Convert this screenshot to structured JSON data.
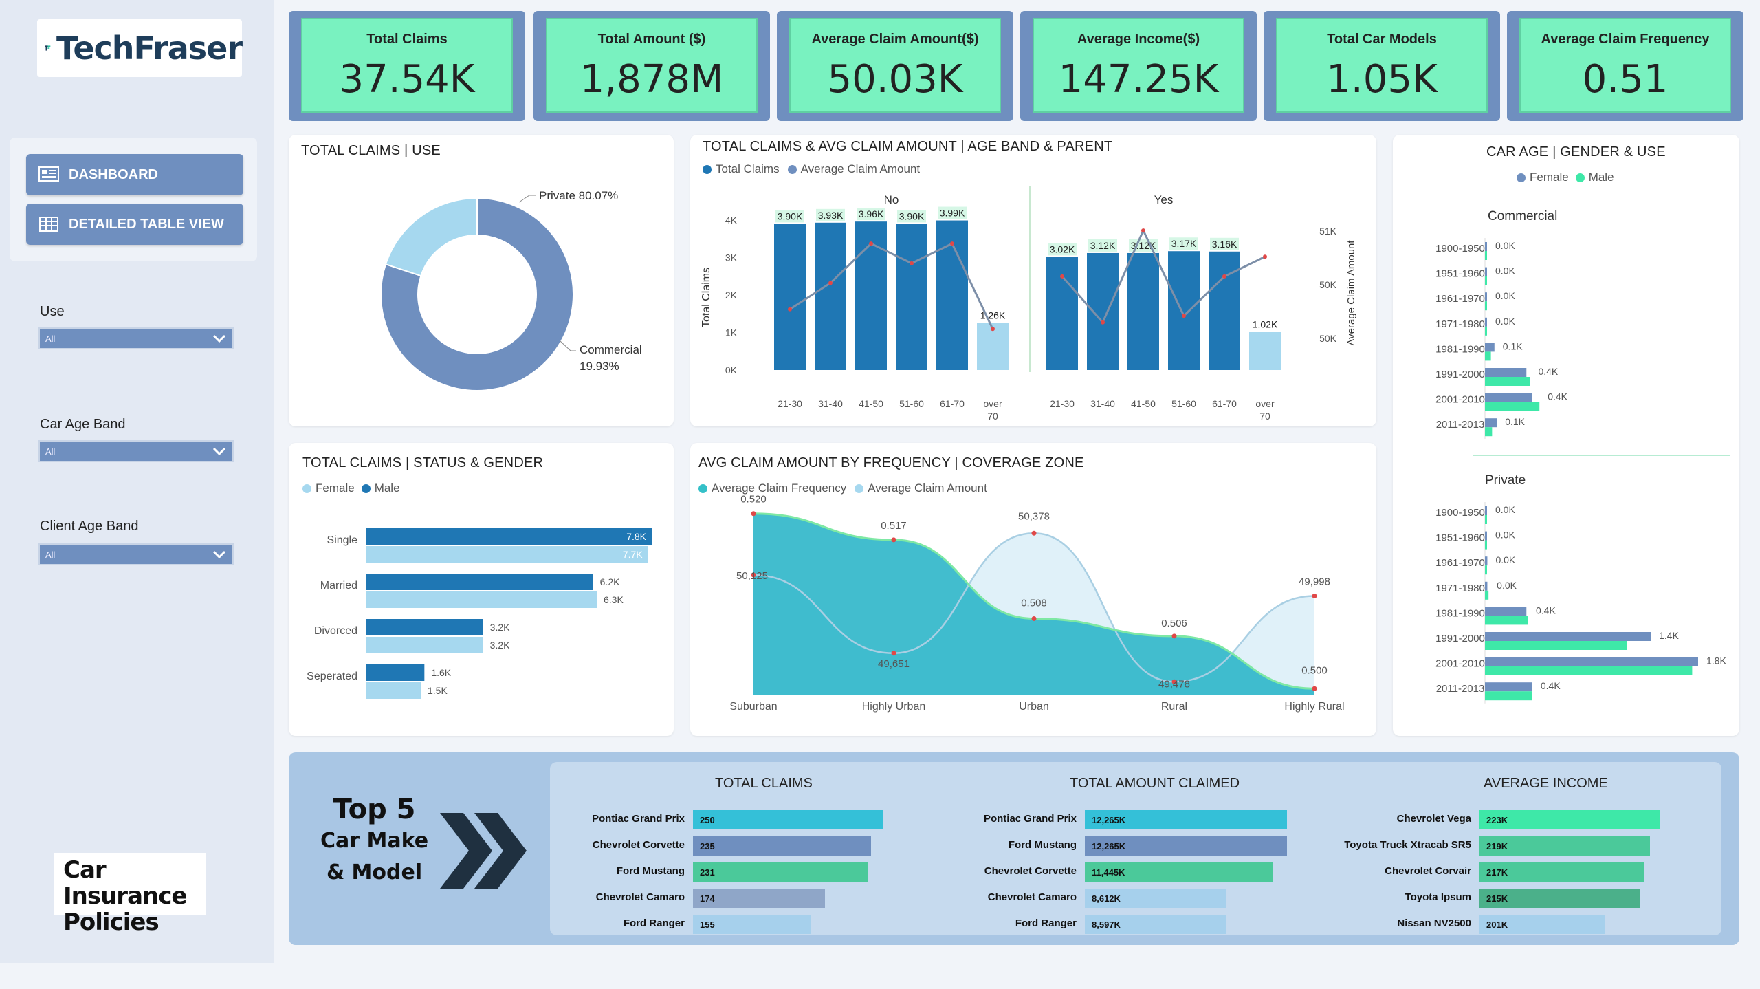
{
  "brand": {
    "name": "TechFraser",
    "report_name": "Car Insurance Policies"
  },
  "nav": {
    "dashboard": "DASHBOARD",
    "detailed": "DETAILED TABLE VIEW"
  },
  "filters": [
    {
      "label": "Use",
      "value": "All"
    },
    {
      "label": "Car Age Band",
      "value": "All"
    },
    {
      "label": "Client Age Band",
      "value": "All"
    }
  ],
  "kpis": [
    {
      "title": "Total Claims",
      "value": "37.54K"
    },
    {
      "title": "Total Amount ($)",
      "value": "1,878M"
    },
    {
      "title": "Average Claim Amount($)",
      "value": "50.03K"
    },
    {
      "title": "Average Income($)",
      "value": "147.25K"
    },
    {
      "title": "Total Car Models",
      "value": "1.05K"
    },
    {
      "title": "Average Claim Frequency",
      "value": "0.51"
    }
  ],
  "colors": {
    "dark_blue": "#1f77b4",
    "light_blue": "#a6d8ef",
    "slate": "#6f8fbf",
    "mint": "#79f2c0",
    "teal": "#34c0c8"
  },
  "chart_data": [
    {
      "type": "pie",
      "title": "TOTAL CLAIMS | USE",
      "slices": [
        {
          "name": "Private",
          "value": 80.07,
          "label": "Private 80.07%"
        },
        {
          "name": "Commercial",
          "value": 19.93,
          "label_line1": "Commercial",
          "label_line2": "19.93%"
        }
      ]
    },
    {
      "type": "bar",
      "title": "TOTAL CLAIMS & AVG CLAIM AMOUNT | AGE BAND & PARENT",
      "legend": [
        "Total Claims",
        "Average Claim Amount"
      ],
      "ylabel": "Total Claims",
      "y2label": "Average Claim Amount",
      "yticks": [
        "4K",
        "3K",
        "2K",
        "1K",
        "0K"
      ],
      "y2ticks": [
        "51K",
        "50K",
        "50K"
      ],
      "ylim": [
        0,
        4000
      ],
      "groups": [
        {
          "name": "No",
          "categories": [
            "21-30",
            "31-40",
            "41-50",
            "51-60",
            "61-70",
            "over 70"
          ],
          "values": [
            3900,
            3930,
            3960,
            3900,
            3990,
            1260
          ],
          "labels": [
            "3.90K",
            "3.93K",
            "3.96K",
            "3.90K",
            "3.99K",
            "1.26K"
          ],
          "avg_amount": [
            49800,
            50200,
            50800,
            50500,
            50800,
            49500
          ]
        },
        {
          "name": "Yes",
          "categories": [
            "21-30",
            "31-40",
            "41-50",
            "51-60",
            "61-70",
            "over 70"
          ],
          "values": [
            3020,
            3120,
            3120,
            3170,
            3160,
            1020
          ],
          "labels": [
            "3.02K",
            "3.12K",
            "3.12K",
            "3.17K",
            "3.16K",
            "1.02K"
          ],
          "avg_amount": [
            50300,
            49600,
            51000,
            49700,
            50300,
            50600
          ]
        }
      ]
    },
    {
      "type": "bar",
      "title": "CAR AGE | GENDER & USE",
      "legend": [
        "Female",
        "Male"
      ],
      "categories": [
        "1900-1950",
        "1951-1960",
        "1961-1970",
        "1971-1980",
        "1981-1990",
        "1991-2000",
        "2001-2010",
        "2011-2013"
      ],
      "panels": [
        {
          "name": "Commercial",
          "female": [
            0.0,
            0.0,
            0.0,
            0.0,
            0.08,
            0.35,
            0.4,
            0.1
          ],
          "male": [
            0.0,
            0.0,
            0.0,
            0.0,
            0.05,
            0.38,
            0.46,
            0.06
          ],
          "labels": [
            "0.0K",
            "0.0K",
            "0.0K",
            "0.0K",
            "0.1K",
            "0.4K",
            "0.4K",
            "0.1K"
          ]
        },
        {
          "name": "Private",
          "female": [
            0.0,
            0.0,
            0.02,
            0.02,
            0.35,
            1.4,
            1.8,
            0.4
          ],
          "male": [
            0.0,
            0.0,
            0.0,
            0.03,
            0.36,
            1.2,
            1.75,
            0.4
          ],
          "labels": [
            "0.0K",
            "0.0K",
            "0.0K",
            "0.0K",
            "0.4K",
            "1.4K",
            "1.8K",
            "0.4K"
          ]
        }
      ]
    },
    {
      "type": "bar",
      "title": "TOTAL CLAIMS | STATUS & GENDER",
      "legend": [
        "Female",
        "Male"
      ],
      "categories": [
        "Single",
        "Married",
        "Divorced",
        "Seperated"
      ],
      "series": [
        {
          "name": "Male",
          "values": [
            7.8,
            6.2,
            3.2,
            1.6
          ],
          "labels": [
            "7.8K",
            "6.2K",
            "3.2K",
            "1.6K"
          ]
        },
        {
          "name": "Female",
          "values": [
            7.7,
            6.3,
            3.2,
            1.5
          ],
          "labels": [
            "7.7K",
            "6.3K",
            "3.2K",
            "1.5K"
          ]
        }
      ]
    },
    {
      "type": "area",
      "title": "AVG CLAIM AMOUNT BY FREQUENCY | COVERAGE ZONE",
      "legend": [
        "Average Claim Frequency",
        "Average Claim Amount"
      ],
      "categories": [
        "Suburban",
        "Highly Urban",
        "Urban",
        "Rural",
        "Highly Rural"
      ],
      "series": [
        {
          "name": "Average Claim Frequency",
          "values": [
            0.52,
            0.517,
            0.508,
            0.506,
            0.5
          ],
          "labels": [
            "0.520",
            "0.517",
            "0.508",
            "0.506",
            "0.500"
          ]
        },
        {
          "name": "Average Claim Amount",
          "values": [
            50125,
            49651,
            50378,
            49478,
            49998
          ],
          "labels": [
            "50,125",
            "49,651",
            "50,378",
            "49,478",
            "49,998"
          ]
        }
      ]
    }
  ],
  "top5": {
    "title_line1": "Top 5",
    "title_line2": "Car Make",
    "title_line3": "& Model",
    "total_claims": {
      "header": "TOTAL CLAIMS",
      "rows": [
        {
          "label": "Pontiac Grand Prix",
          "value": 250,
          "text": "250"
        },
        {
          "label": "Chevrolet Corvette",
          "value": 235,
          "text": "235"
        },
        {
          "label": "Ford Mustang",
          "value": 231,
          "text": "231"
        },
        {
          "label": "Chevrolet Camaro",
          "value": 174,
          "text": "174"
        },
        {
          "label": "Ford Ranger",
          "value": 155,
          "text": "155"
        }
      ]
    },
    "total_amount": {
      "header": "TOTAL AMOUNT CLAIMED",
      "rows": [
        {
          "label": "Pontiac Grand Prix",
          "value": 12265,
          "text": "12,265K"
        },
        {
          "label": "Ford Mustang",
          "value": 12265,
          "text": "12,265K"
        },
        {
          "label": "Chevrolet Corvette",
          "value": 11445,
          "text": "11,445K"
        },
        {
          "label": "Chevrolet Camaro",
          "value": 8612,
          "text": "8,612K"
        },
        {
          "label": "Ford Ranger",
          "value": 8597,
          "text": "8,597K"
        }
      ]
    },
    "avg_income": {
      "header": "AVERAGE INCOME",
      "rows": [
        {
          "label": "Chevrolet Vega",
          "value": 223,
          "text": "223K"
        },
        {
          "label": "Toyota Truck Xtracab SR5",
          "value": 219,
          "text": "219K"
        },
        {
          "label": "Chevrolet Corvair",
          "value": 217,
          "text": "217K"
        },
        {
          "label": "Toyota Ipsum",
          "value": 215,
          "text": "215K"
        },
        {
          "label": "Nissan NV2500",
          "value": 201,
          "text": "201K"
        }
      ]
    }
  }
}
